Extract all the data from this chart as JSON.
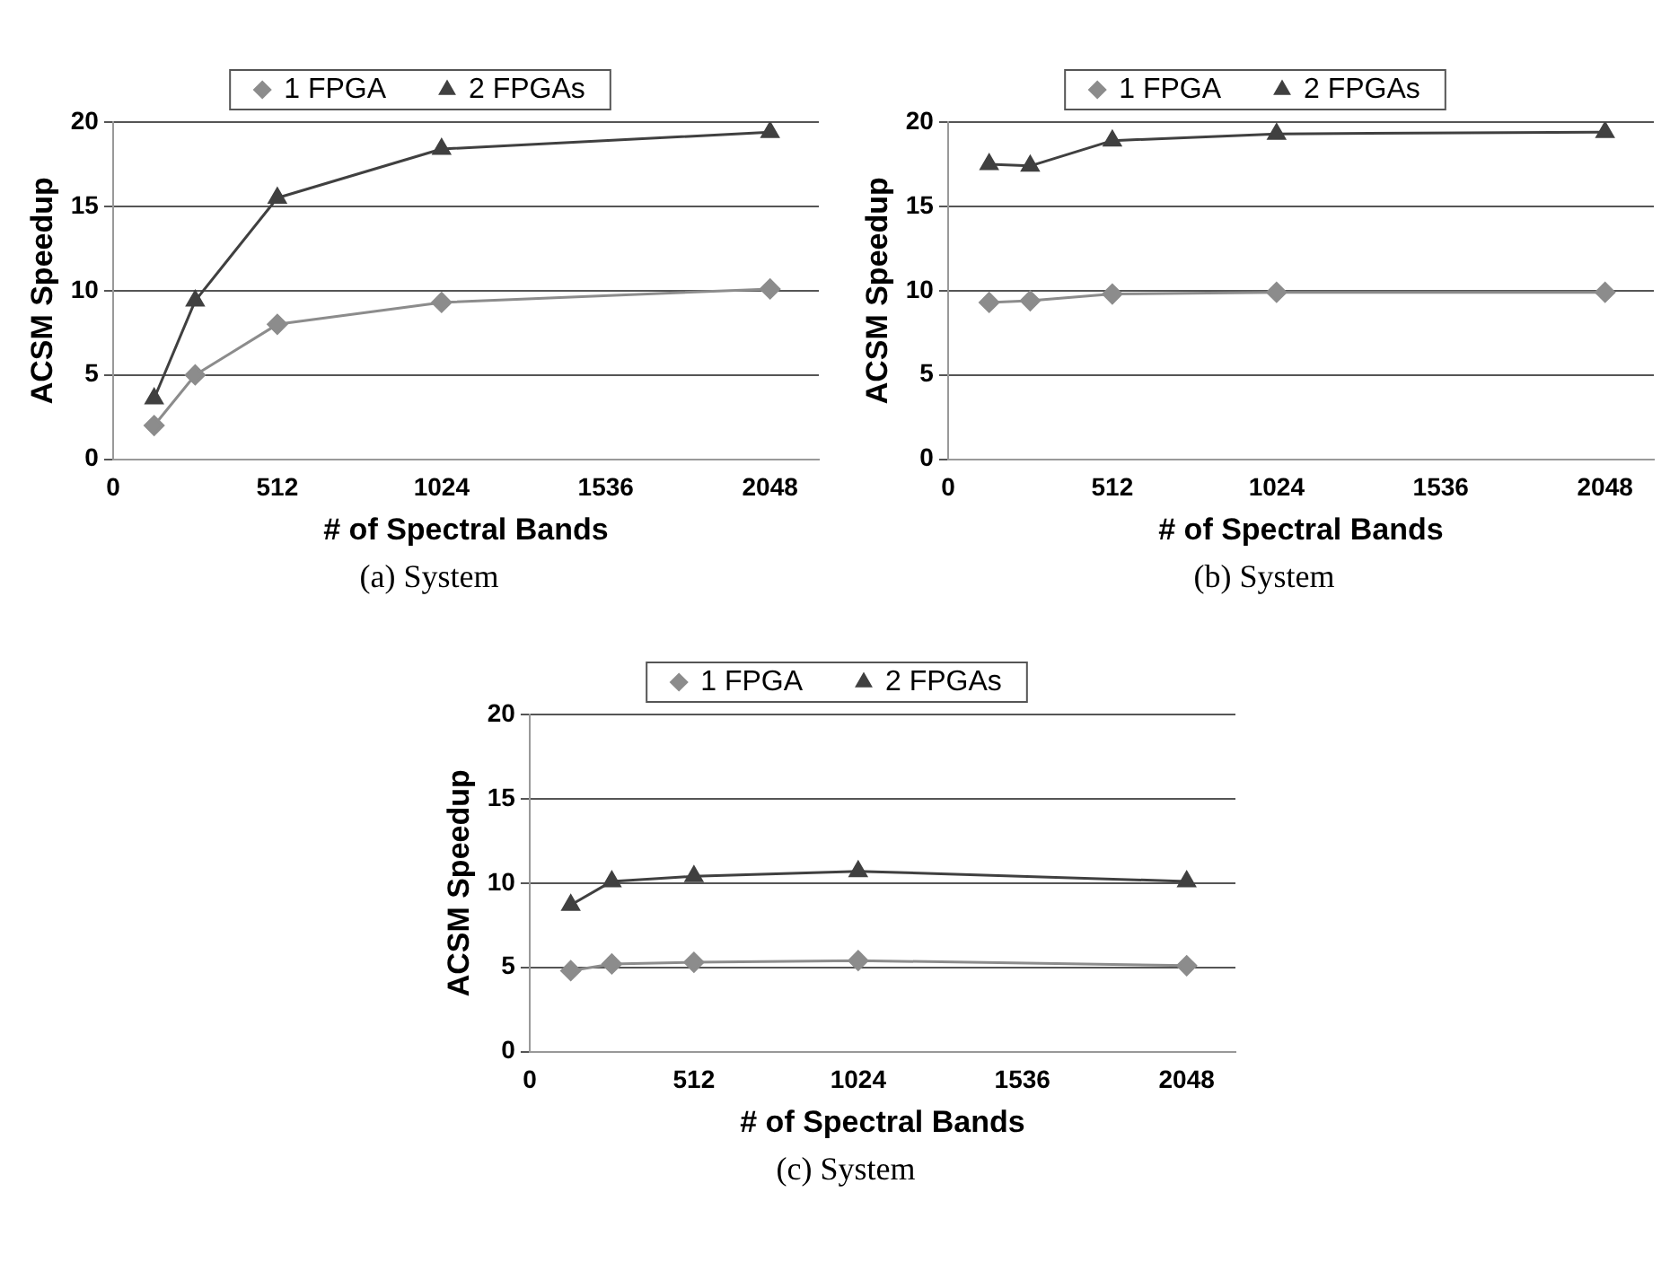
{
  "chart_data": [
    {
      "type": "line",
      "xlabel": "# of Spectral Bands",
      "ylabel": "ACSM Speedup",
      "annotations": [
        "(a) System"
      ],
      "x": [
        128,
        256,
        512,
        1024,
        2048
      ],
      "xlim": [
        0,
        2200
      ],
      "xticks": [
        0,
        512,
        1024,
        1536,
        2048
      ],
      "ylim": [
        0,
        20
      ],
      "yticks": [
        0,
        5,
        10,
        15,
        20
      ],
      "grid": "y",
      "legend": "top",
      "series": [
        {
          "name": "1 FPGA",
          "color": "#8c8c8c",
          "marker": "diamond",
          "values": [
            2.0,
            5.0,
            8.0,
            9.3,
            10.1
          ]
        },
        {
          "name": "2 FPGAs",
          "color": "#404040",
          "marker": "triangle",
          "values": [
            3.6,
            9.4,
            15.5,
            18.4,
            19.4
          ]
        }
      ]
    },
    {
      "type": "line",
      "xlabel": "# of Spectral Bands",
      "ylabel": "ACSM Speedup",
      "annotations": [
        "(b) System"
      ],
      "x": [
        128,
        256,
        512,
        1024,
        2048
      ],
      "xlim": [
        0,
        2200
      ],
      "xticks": [
        0,
        512,
        1024,
        1536,
        2048
      ],
      "ylim": [
        0,
        20
      ],
      "yticks": [
        0,
        5,
        10,
        15,
        20
      ],
      "grid": "y",
      "legend": "top",
      "series": [
        {
          "name": "1 FPGA",
          "color": "#8c8c8c",
          "marker": "diamond",
          "values": [
            9.3,
            9.4,
            9.8,
            9.9,
            9.9
          ]
        },
        {
          "name": "2 FPGAs",
          "color": "#404040",
          "marker": "triangle",
          "values": [
            17.5,
            17.4,
            18.9,
            19.3,
            19.4
          ]
        }
      ]
    },
    {
      "type": "line",
      "xlabel": "# of Spectral Bands",
      "ylabel": "ACSM Speedup",
      "annotations": [
        "(c) System"
      ],
      "x": [
        128,
        256,
        512,
        1024,
        2048
      ],
      "xlim": [
        0,
        2200
      ],
      "xticks": [
        0,
        512,
        1024,
        1536,
        2048
      ],
      "ylim": [
        0,
        20
      ],
      "yticks": [
        0,
        5,
        10,
        15,
        20
      ],
      "grid": "y",
      "legend": "top",
      "series": [
        {
          "name": "1 FPGA",
          "color": "#8c8c8c",
          "marker": "diamond",
          "values": [
            4.8,
            5.2,
            5.3,
            5.4,
            5.1
          ]
        },
        {
          "name": "2 FPGAs",
          "color": "#404040",
          "marker": "triangle",
          "values": [
            8.7,
            10.1,
            10.4,
            10.7,
            10.1
          ]
        }
      ]
    }
  ]
}
